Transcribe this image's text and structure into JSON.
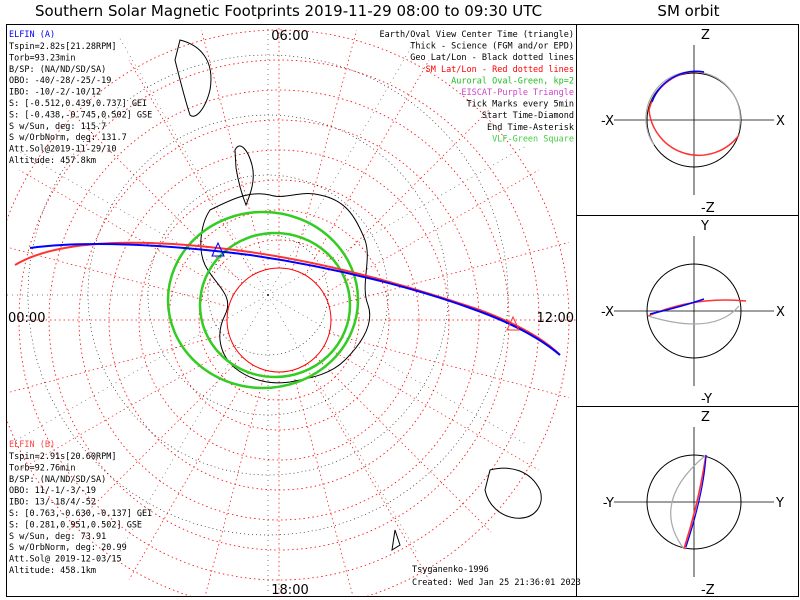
{
  "title": "Southern Solar Magnetic Footprints 2019-11-29 08:00 to 09:30 UTC",
  "orbit_title": "SM orbit",
  "hour_labels": {
    "top": "06:00",
    "left": "00:00",
    "right": "12:00",
    "bottom": "18:00"
  },
  "legend": [
    {
      "text": "Earth/Oval View Center Time (triangle)",
      "color": "#000000"
    },
    {
      "text": "Thick - Science (FGM and/or EPD)",
      "color": "#000000"
    },
    {
      "text": "Geo Lat/Lon - Black dotted lines",
      "color": "#000000"
    },
    {
      "text": "SM Lat/Lon - Red dotted lines",
      "color": "#ff0000"
    },
    {
      "text": "Auroral Oval-Green, kp=2",
      "color": "#22bb22"
    },
    {
      "text": "EISCAT-Purple Triangle",
      "color": "#cc44cc"
    },
    {
      "text": "Tick Marks every 5min",
      "color": "#000000"
    },
    {
      "text": "Start Time-Diamond",
      "color": "#000000"
    },
    {
      "text": "End Time-Asterisk",
      "color": "#000000"
    },
    {
      "text": "VLF-Green Square",
      "color": "#44cc44"
    }
  ],
  "elfin_a": {
    "name": "ELFIN (A)",
    "color": "#0000ff",
    "lines": [
      "Tspin=2.82s[21.28RPM]",
      "Torb=93.23min",
      "B/SP: (NA/ND/SD/SA)",
      "OBO: -40/-28/-25/-19",
      "IBO: -10/-2/-10/12",
      "S: [-0.512,0.439,0.737] GEI",
      "S: [-0.438,-0.745,0.502] GSE",
      "S w/Sun, deg: 115.7",
      "S w/OrbNorm, deg: 131.7",
      "Att.Sol@2019-11-29/10",
      "Altitude: 457.8km"
    ]
  },
  "elfin_b": {
    "name": "ELFIN (B)",
    "color": "#ff4444",
    "lines": [
      "Tspin=2.91s[20.60RPM]",
      "Torb=92.76min",
      "B/SP: (NA/ND/SD/SA)",
      "OBO: 11/-1/-3/-19",
      "IBO: 13/-18/4/-52",
      "S: [0.763,-0.630,-0.137] GEI",
      "S: [0.281,0.951,0.502] GSE",
      "S w/Sun, deg: 73.91",
      "S w/OrbNorm, deg: 20.99",
      "Att.Sol@ 2019-12-03/15",
      "Altitude: 458.1km"
    ]
  },
  "footer": {
    "credit": "Tsyganenko-1996",
    "created": "Created: Wed Jan 25 21:36:01 2023"
  },
  "orbit_panels": [
    {
      "top": "Z",
      "bottom": "-Z",
      "left": "-X",
      "right": "X"
    },
    {
      "top": "Y",
      "bottom": "-Y",
      "left": "-X",
      "right": "X"
    },
    {
      "top": "Z",
      "bottom": "-Z",
      "left": "-Y",
      "right": "Y"
    }
  ],
  "colors": {
    "probe_a": "#0000ff",
    "probe_b": "#ff3333",
    "oval": "#33cc22",
    "sm_grid": "#ff0000",
    "geo_grid": "#000000"
  }
}
